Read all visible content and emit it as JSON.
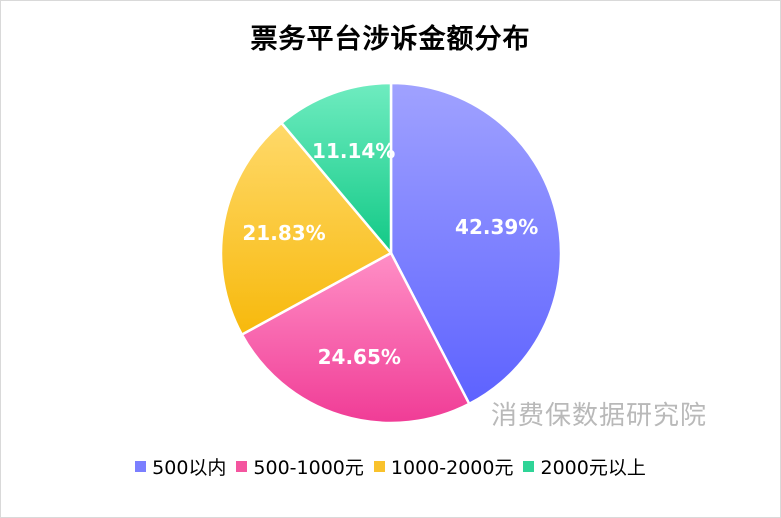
{
  "chart_data": {
    "type": "pie",
    "title": "票务平台涉诉金额分布",
    "categories": [
      "500以内",
      "500-1000元",
      "1000-2000元",
      "2000元以上"
    ],
    "values": [
      42.39,
      24.65,
      21.83,
      11.14
    ],
    "labels": [
      "42.39%",
      "24.65%",
      "21.83%",
      "11.14%"
    ],
    "colors": [
      [
        "#a0a2ff",
        "#5d62ff"
      ],
      [
        "#ff8fc6",
        "#f03c96"
      ],
      [
        "#ffd96a",
        "#f7b90c"
      ],
      [
        "#6fecc0",
        "#12c986"
      ]
    ],
    "legend_colors": [
      "#7b7fff",
      "#f4559f",
      "#f9c22c",
      "#2fd497"
    ],
    "legend": "bottom",
    "start_angle_deg": 0,
    "direction": "clockwise"
  },
  "watermark": "消费保数据研究院"
}
